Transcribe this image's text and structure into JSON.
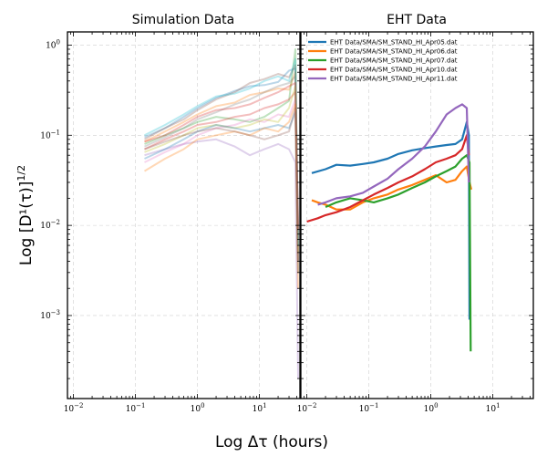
{
  "chart_data": [
    {
      "panel": "left",
      "type": "line",
      "title": "Simulation Data",
      "xscale": "log",
      "yscale": "log",
      "xlim": [
        0.008,
        45
      ],
      "ylim": [
        0.00012,
        1.4
      ],
      "grid": true,
      "series_opacity": 0.3,
      "series": [
        {
          "color": "#1f77b4",
          "x": [
            0.14,
            0.3,
            0.6,
            1,
            2,
            4,
            7,
            12,
            20,
            30,
            38,
            42
          ],
          "y": [
            0.095,
            0.12,
            0.16,
            0.2,
            0.26,
            0.31,
            0.35,
            0.36,
            0.39,
            0.52,
            0.55,
            0.006
          ]
        },
        {
          "color": "#ff7f0e",
          "x": [
            0.14,
            0.3,
            0.6,
            1,
            2,
            4,
            7,
            12,
            20,
            30,
            38,
            42
          ],
          "y": [
            0.085,
            0.11,
            0.14,
            0.17,
            0.21,
            0.23,
            0.28,
            0.3,
            0.33,
            0.32,
            0.5,
            0.003
          ]
        },
        {
          "color": "#2ca02c",
          "x": [
            0.14,
            0.3,
            0.6,
            1,
            2,
            4,
            7,
            12,
            20,
            30,
            38,
            42
          ],
          "y": [
            0.08,
            0.1,
            0.12,
            0.14,
            0.16,
            0.15,
            0.14,
            0.16,
            0.2,
            0.24,
            0.9,
            0.004
          ]
        },
        {
          "color": "#d62728",
          "x": [
            0.14,
            0.3,
            0.6,
            1,
            2,
            4,
            7,
            12,
            20,
            30,
            38,
            42
          ],
          "y": [
            0.07,
            0.09,
            0.11,
            0.13,
            0.14,
            0.16,
            0.17,
            0.2,
            0.22,
            0.25,
            0.3,
            0.01
          ]
        },
        {
          "color": "#9467bd",
          "x": [
            0.14,
            0.3,
            0.6,
            1,
            2,
            4,
            7,
            12,
            20,
            30,
            38,
            42
          ],
          "y": [
            0.06,
            0.07,
            0.08,
            0.085,
            0.09,
            0.075,
            0.06,
            0.07,
            0.08,
            0.07,
            0.05,
            0.0002
          ]
        },
        {
          "color": "#8c564b",
          "x": [
            0.14,
            0.3,
            0.6,
            1,
            2,
            4,
            7,
            12,
            20,
            30,
            38,
            42
          ],
          "y": [
            0.09,
            0.12,
            0.15,
            0.19,
            0.25,
            0.3,
            0.38,
            0.42,
            0.48,
            0.44,
            0.6,
            0.007
          ]
        },
        {
          "color": "#e377c2",
          "x": [
            0.14,
            0.3,
            0.6,
            1,
            2,
            4,
            7,
            12,
            20,
            30,
            38,
            42
          ],
          "y": [
            0.05,
            0.065,
            0.08,
            0.1,
            0.12,
            0.13,
            0.15,
            0.14,
            0.17,
            0.16,
            0.25,
            0.004
          ]
        },
        {
          "color": "#7f7f7f",
          "x": [
            0.14,
            0.3,
            0.6,
            1,
            2,
            4,
            7,
            12,
            20,
            30,
            38,
            42
          ],
          "y": [
            0.075,
            0.095,
            0.12,
            0.15,
            0.18,
            0.22,
            0.25,
            0.3,
            0.35,
            0.38,
            0.45,
            0.008
          ]
        },
        {
          "color": "#bcbd22",
          "x": [
            0.14,
            0.3,
            0.6,
            1,
            2,
            4,
            7,
            12,
            20,
            30,
            38,
            42
          ],
          "y": [
            0.065,
            0.08,
            0.1,
            0.12,
            0.13,
            0.12,
            0.13,
            0.15,
            0.14,
            0.2,
            0.35,
            0.005
          ]
        },
        {
          "color": "#17becf",
          "x": [
            0.14,
            0.3,
            0.6,
            1,
            2,
            4,
            7,
            12,
            20,
            30,
            38,
            42
          ],
          "y": [
            0.1,
            0.13,
            0.17,
            0.21,
            0.27,
            0.29,
            0.33,
            0.4,
            0.45,
            0.4,
            0.7,
            0.006
          ]
        },
        {
          "color": "#1f77b4",
          "x": [
            0.14,
            0.3,
            0.6,
            1,
            2,
            4,
            7,
            12,
            20,
            30,
            38,
            42
          ],
          "y": [
            0.055,
            0.07,
            0.09,
            0.11,
            0.13,
            0.12,
            0.11,
            0.12,
            0.13,
            0.12,
            0.18,
            0.003
          ]
        },
        {
          "color": "#ff7f0e",
          "x": [
            0.14,
            0.3,
            0.6,
            1,
            2,
            4,
            7,
            12,
            20,
            30,
            38,
            42
          ],
          "y": [
            0.04,
            0.055,
            0.07,
            0.09,
            0.1,
            0.11,
            0.1,
            0.12,
            0.11,
            0.14,
            0.22,
            0.002
          ]
        },
        {
          "color": "#d62728",
          "x": [
            0.14,
            0.3,
            0.6,
            1,
            2,
            4,
            7,
            12,
            20,
            30,
            38,
            42
          ],
          "y": [
            0.085,
            0.1,
            0.13,
            0.16,
            0.19,
            0.2,
            0.22,
            0.26,
            0.3,
            0.35,
            0.38,
            0.009
          ]
        },
        {
          "color": "#8c564b",
          "x": [
            0.14,
            0.3,
            0.6,
            1,
            2,
            4,
            7,
            12,
            20,
            30,
            38,
            42
          ],
          "y": [
            0.07,
            0.085,
            0.1,
            0.11,
            0.12,
            0.11,
            0.1,
            0.09,
            0.1,
            0.11,
            0.2,
            0.004
          ]
        }
      ]
    },
    {
      "panel": "right",
      "type": "line",
      "title": "EHT Data",
      "xscale": "log",
      "yscale": "log",
      "xlim": [
        0.008,
        45
      ],
      "ylim": [
        0.00012,
        1.4
      ],
      "grid": true,
      "legend_location": "top-left",
      "series": [
        {
          "name": "EHT Data/SMA/SM_STAND_HI_Apr05.dat",
          "color": "#1f77b4",
          "x": [
            0.012,
            0.02,
            0.03,
            0.05,
            0.08,
            0.12,
            0.2,
            0.3,
            0.5,
            0.8,
            1.2,
            1.8,
            2.5,
            3.2,
            3.8,
            4.1,
            4.2
          ],
          "y": [
            0.038,
            0.042,
            0.047,
            0.046,
            0.048,
            0.05,
            0.055,
            0.062,
            0.068,
            0.072,
            0.075,
            0.078,
            0.08,
            0.09,
            0.14,
            0.1,
            0.0009
          ]
        },
        {
          "name": "EHT Data/SMA/SM_STAND_HI_Apr06.dat",
          "color": "#ff7f0e",
          "x": [
            0.012,
            0.015,
            0.02,
            0.03,
            0.05,
            0.08,
            0.12,
            0.2,
            0.3,
            0.5,
            0.8,
            1.2,
            1.8,
            2.5,
            3.2,
            3.8,
            4.2,
            4.5
          ],
          "y": [
            0.019,
            0.018,
            0.017,
            0.015,
            0.015,
            0.018,
            0.02,
            0.022,
            0.025,
            0.028,
            0.032,
            0.036,
            0.03,
            0.032,
            0.04,
            0.045,
            0.03,
            0.025
          ]
        },
        {
          "name": "EHT Data/SMA/SM_STAND_HI_Apr07.dat",
          "color": "#2ca02c",
          "x": [
            0.02,
            0.03,
            0.05,
            0.08,
            0.12,
            0.2,
            0.3,
            0.5,
            0.8,
            1.2,
            1.8,
            2.5,
            3.2,
            3.8,
            4.2,
            4.4
          ],
          "y": [
            0.016,
            0.018,
            0.02,
            0.019,
            0.018,
            0.02,
            0.022,
            0.026,
            0.03,
            0.035,
            0.04,
            0.045,
            0.055,
            0.06,
            0.05,
            0.0004
          ]
        },
        {
          "name": "EHT Data/SMA/SM_STAND_HI_Apr10.dat",
          "color": "#d62728",
          "x": [
            0.01,
            0.015,
            0.02,
            0.03,
            0.05,
            0.08,
            0.12,
            0.2,
            0.3,
            0.5,
            0.8,
            1.2,
            1.8,
            2.5,
            3.2,
            3.8,
            4.1
          ],
          "y": [
            0.011,
            0.012,
            0.013,
            0.014,
            0.016,
            0.019,
            0.022,
            0.026,
            0.03,
            0.035,
            0.042,
            0.05,
            0.055,
            0.06,
            0.07,
            0.1,
            0.06
          ]
        },
        {
          "name": "EHT Data/SMA/SM_STAND_HI_Apr11.dat",
          "color": "#9467bd",
          "x": [
            0.015,
            0.02,
            0.03,
            0.05,
            0.08,
            0.12,
            0.2,
            0.3,
            0.5,
            0.8,
            1.2,
            1.8,
            2.5,
            3.2,
            3.8,
            4.1
          ],
          "y": [
            0.017,
            0.018,
            0.02,
            0.021,
            0.023,
            0.027,
            0.033,
            0.042,
            0.055,
            0.075,
            0.11,
            0.17,
            0.2,
            0.22,
            0.2,
            0.03
          ]
        }
      ]
    }
  ],
  "labels": {
    "ylabel": "Log [D¹(τ)]",
    "ylabel_exp": "1/2",
    "xlabel": "Log Δτ (hours)"
  },
  "x_ticks": [
    {
      "value": 0.01,
      "label": "10",
      "exp": "−2"
    },
    {
      "value": 0.1,
      "label": "10",
      "exp": "−1"
    },
    {
      "value": 1,
      "label": "10",
      "exp": "0"
    },
    {
      "value": 10,
      "label": "10",
      "exp": "1"
    }
  ],
  "y_ticks": [
    {
      "value": 0.001,
      "label": "10",
      "exp": "−3"
    },
    {
      "value": 0.01,
      "label": "10",
      "exp": "−2"
    },
    {
      "value": 0.1,
      "label": "10",
      "exp": "−1"
    },
    {
      "value": 1,
      "label": "10",
      "exp": "0"
    }
  ]
}
